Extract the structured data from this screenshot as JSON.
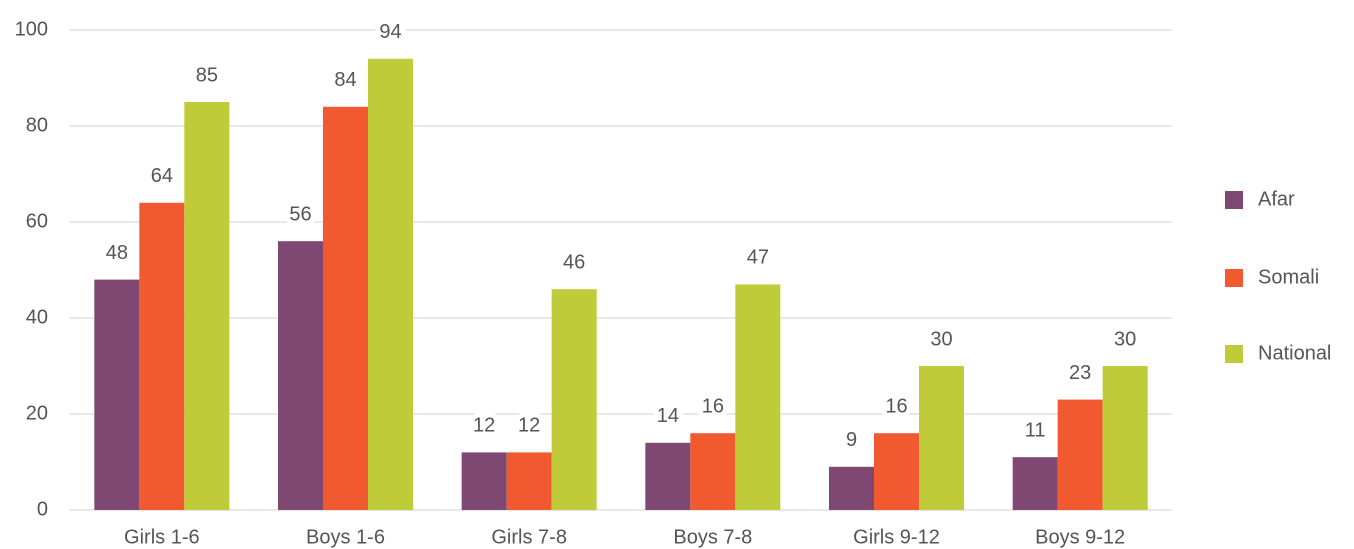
{
  "chart_data": {
    "type": "bar",
    "categories": [
      "Girls 1-6",
      "Boys 1-6",
      "Girls 7-8",
      "Boys 7-8",
      "Girls 9-12",
      "Boys 9-12"
    ],
    "series": [
      {
        "name": "Afar",
        "color": "#7e4872",
        "values": [
          48,
          56,
          12,
          14,
          9,
          11
        ]
      },
      {
        "name": "Somali",
        "color": "#f15a31",
        "values": [
          64,
          84,
          12,
          16,
          16,
          23
        ]
      },
      {
        "name": "National",
        "color": "#bfcb38",
        "values": [
          85,
          94,
          46,
          47,
          30,
          30
        ]
      }
    ],
    "ylim": [
      0,
      100
    ],
    "yticks": [
      0,
      20,
      40,
      60,
      80,
      100
    ],
    "grid": true,
    "legend": "right"
  }
}
